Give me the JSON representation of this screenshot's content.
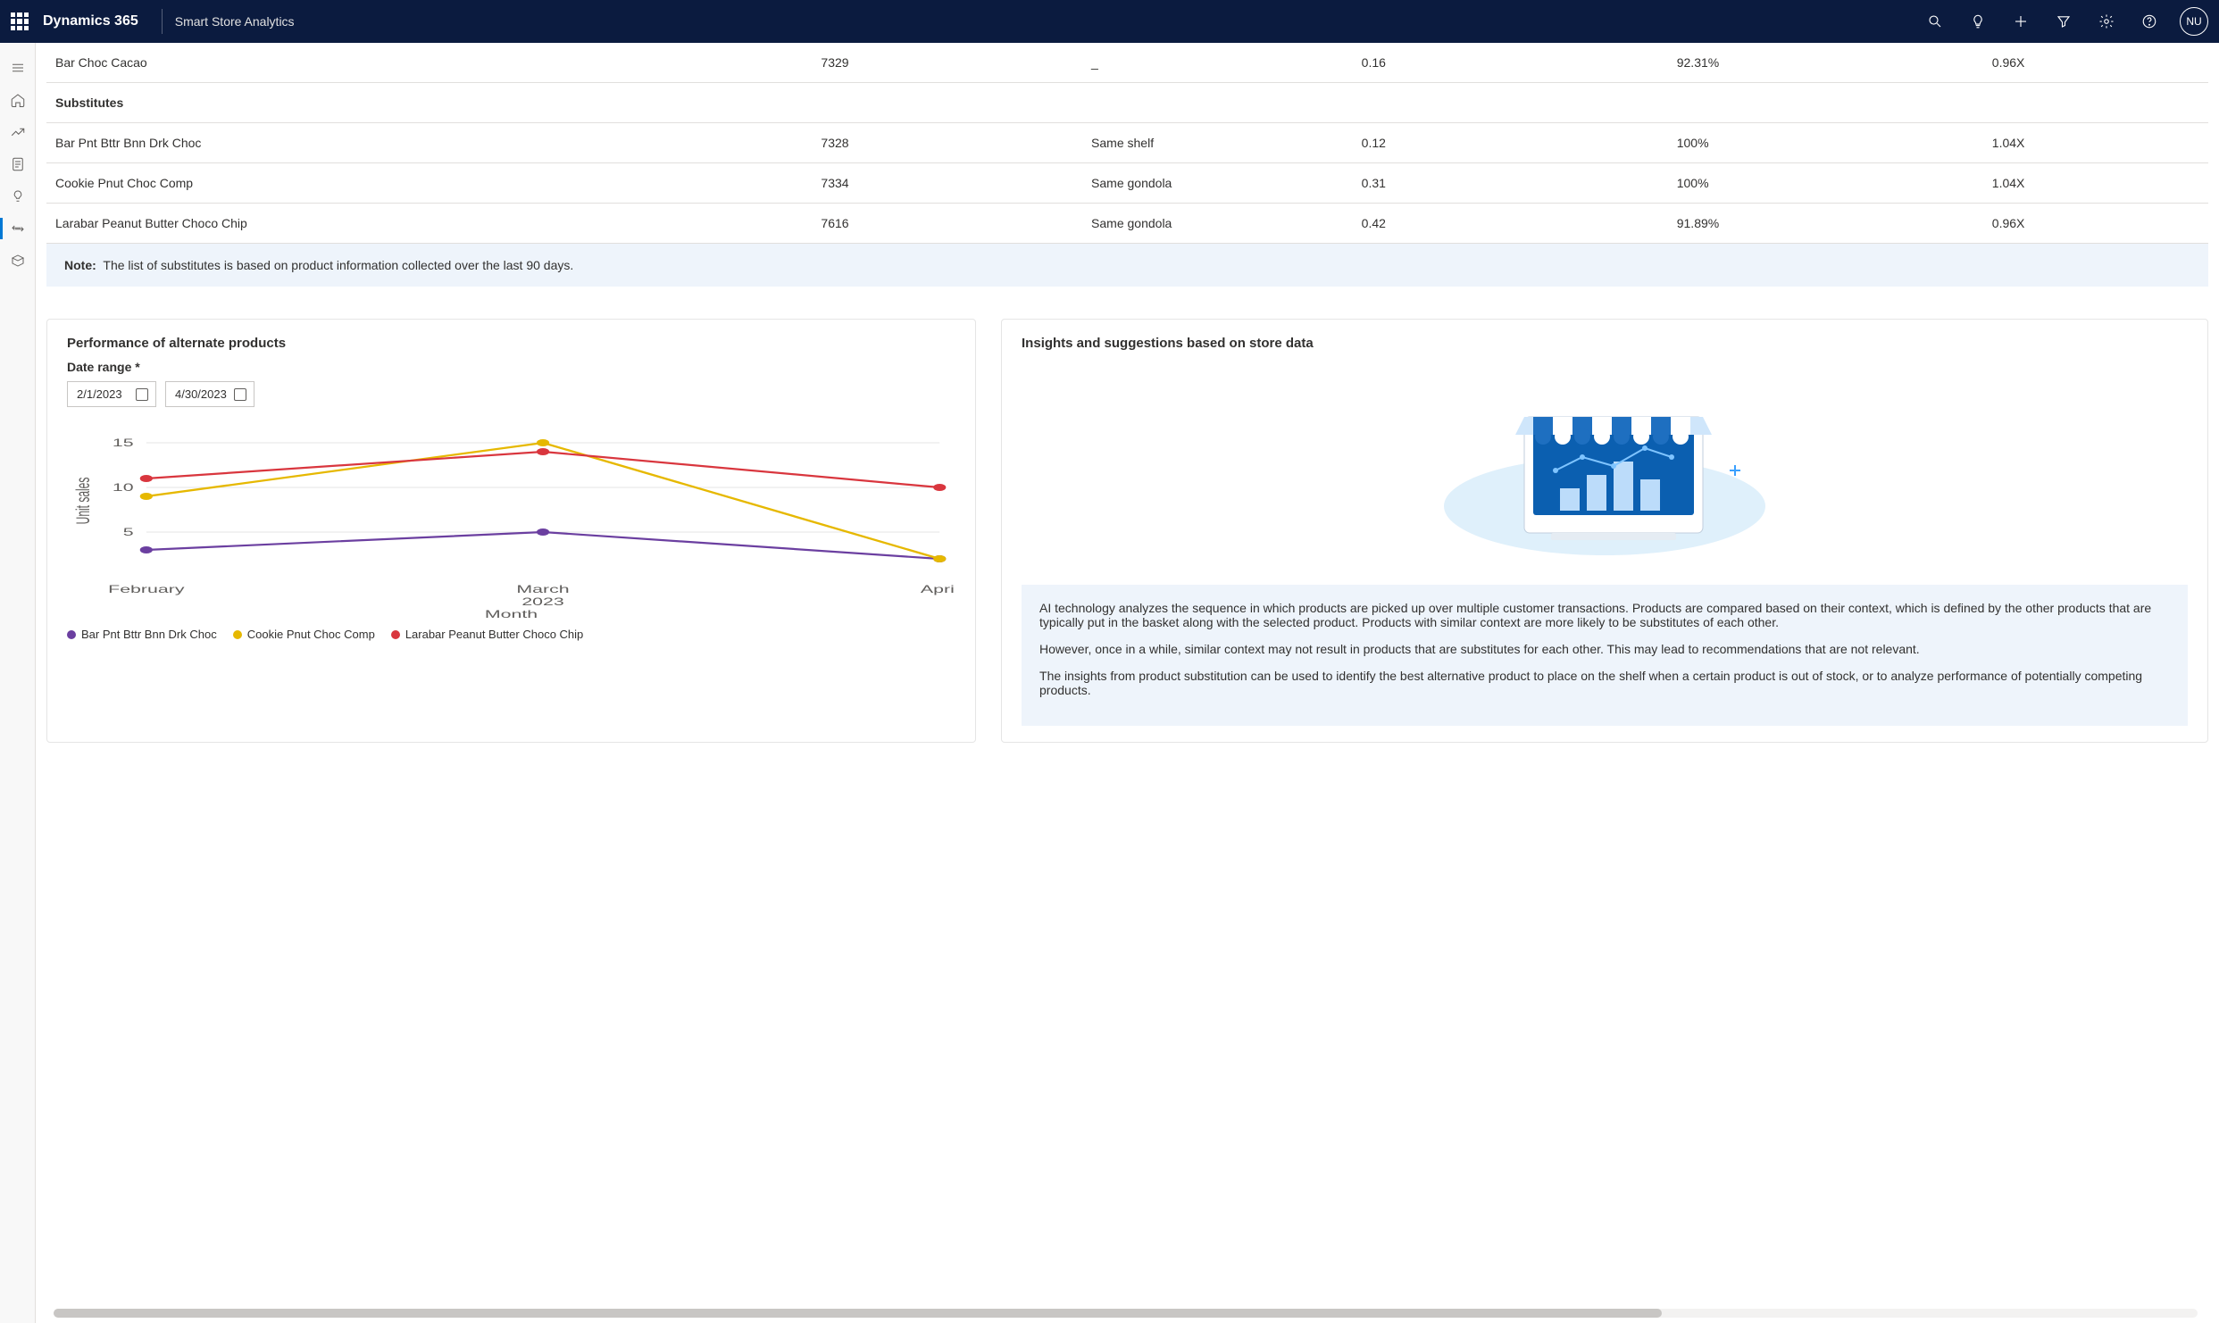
{
  "header": {
    "brand": "Dynamics 365",
    "app_name": "Smart Store Analytics",
    "avatar_initials": "NU"
  },
  "table": {
    "rows": [
      {
        "name": "Bar Choc Cacao",
        "id": "7329",
        "loc": "_",
        "v1": "0.16",
        "v2": "92.31%",
        "v3": "0.96X"
      }
    ],
    "section_label": "Substitutes",
    "sub_rows": [
      {
        "name": "Bar Pnt Bttr Bnn Drk Choc",
        "id": "7328",
        "loc": "Same shelf",
        "v1": "0.12",
        "v2": "100%",
        "v3": "1.04X"
      },
      {
        "name": "Cookie Pnut Choc Comp",
        "id": "7334",
        "loc": "Same gondola",
        "v1": "0.31",
        "v2": "100%",
        "v3": "1.04X"
      },
      {
        "name": "Larabar Peanut Butter Choco Chip",
        "id": "7616",
        "loc": "Same gondola",
        "v1": "0.42",
        "v2": "91.89%",
        "v3": "0.96X"
      }
    ],
    "note_label": "Note:",
    "note_text": "The list of substitutes is based on product information collected over the last 90 days."
  },
  "perf_card": {
    "title": "Performance of alternate products",
    "date_label": "Date range *",
    "date_from": "2/1/2023",
    "date_to": "4/30/2023",
    "chart": {
      "type": "line",
      "y_label": "Unit sales",
      "x_label": "Month",
      "x_sublabel": "2023",
      "x_categories": [
        "February",
        "March",
        "April"
      ],
      "y_ticks": [
        5,
        10,
        15
      ],
      "ylim": [
        0,
        17
      ],
      "series": [
        {
          "name": "Bar Pnt Bttr Bnn Drk Choc",
          "color": "#6b3fa0",
          "values": [
            3,
            5,
            2
          ]
        },
        {
          "name": "Cookie Pnut Choc Comp",
          "color": "#e6b800",
          "values": [
            9,
            15,
            2
          ]
        },
        {
          "name": "Larabar Peanut Butter Choco Chip",
          "color": "#d9363e",
          "values": [
            11,
            14,
            10
          ]
        }
      ],
      "grid_color": "#e6e6e6",
      "axis_color": "#cfcfcf",
      "tick_fontsize": 12,
      "line_width": 2.2,
      "marker": "circle",
      "marker_size": 4,
      "background_color": "#ffffff"
    }
  },
  "insights_card": {
    "title": "Insights and suggestions based on store data",
    "p1": "AI technology analyzes the sequence in which products are picked up over multiple customer transactions. Products are compared based on their context, which is defined by the other products that are typically put in the basket along with the selected product. Products with similar context are more likely to be substitutes of each other.",
    "p2": "However, once in a while, similar context may not result in products that are substitutes for each other. This may lead to recommendations that are not relevant.",
    "p3": "The insights from product substitution can be used to identify the best alternative product to place on the shelf when a certain product is out of stock, or to analyze performance of potentially competing products."
  }
}
